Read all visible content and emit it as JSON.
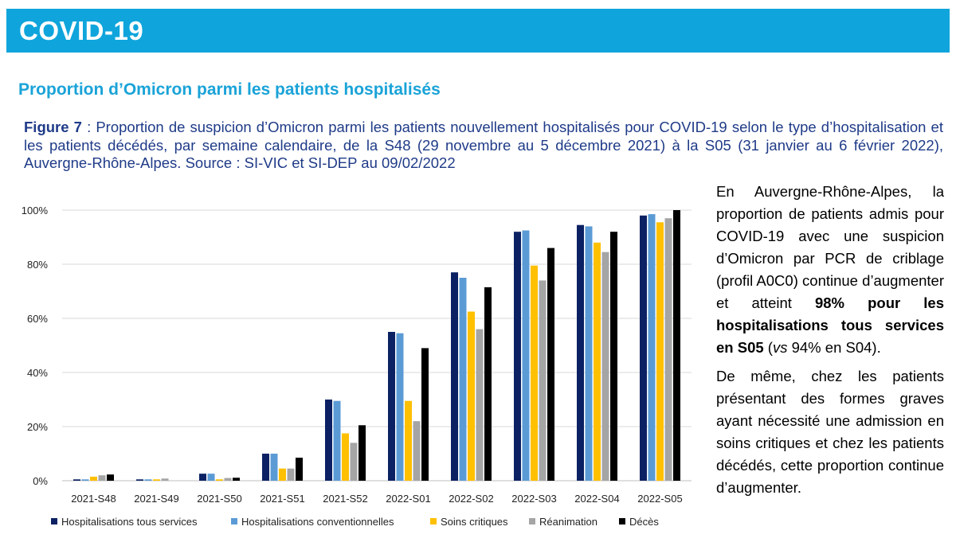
{
  "banner": {
    "title": "COVID-19"
  },
  "section_title": "Proportion d’Omicron parmi les patients hospitalisés",
  "caption": {
    "label": "Figure 7",
    "text": " : Proportion de suspicion d’Omicron parmi les patients nouvellement hospitalisés pour COVID-19 selon le type d’hospitalisation et les patients décédés, par semaine calendaire, de la S48 (29 novembre au 5 décembre 2021) à la S05 (31 janvier au 6 février 2022), Auvergne-Rhône-Alpes. Source : SI-VIC et SI-DEP au 09/02/2022"
  },
  "side_text": {
    "p1_a": "En Auvergne-Rhône-Alpes, la proportion de patients admis pour COVID-19 avec une suspicion d’Omicron par PCR de criblage (profil A0C0) continue d’augmenter et atteint ",
    "p1_bold": "98% pour les hospitalisations tous services en S05",
    "p1_b": " (",
    "p1_vs": "vs",
    "p1_c": " 94% en S04).",
    "p2": "De même, chez les patients présentant des formes graves ayant nécessité une admission en soins critiques et chez les patients décédés, cette proportion continue d’augmenter."
  },
  "chart_data": {
    "type": "bar",
    "title": "",
    "xlabel": "",
    "ylabel": "",
    "ylim": [
      0,
      100
    ],
    "yticks": [
      "0%",
      "20%",
      "40%",
      "60%",
      "80%",
      "100%"
    ],
    "ytick_values": [
      0,
      20,
      40,
      60,
      80,
      100
    ],
    "grid": true,
    "legend_position": "bottom",
    "categories": [
      "2021-S48",
      "2021-S49",
      "2021-S50",
      "2021-S51",
      "2021-S52",
      "2022-S01",
      "2022-S02",
      "2022-S03",
      "2022-S04",
      "2022-S05"
    ],
    "series": [
      {
        "name": "Hospitalisations tous services",
        "color": "#0b2163",
        "values": [
          0.5,
          0.5,
          2.6,
          10,
          30,
          55,
          77,
          92,
          94.5,
          98
        ]
      },
      {
        "name": "Hospitalisations conventionnelles",
        "color": "#5b9bd5",
        "values": [
          0.5,
          0.5,
          2.6,
          10,
          29.5,
          54.5,
          75,
          92.5,
          94,
          98.5
        ]
      },
      {
        "name": "Soins critiques",
        "color": "#ffc000",
        "values": [
          1.5,
          0.5,
          0.5,
          4.5,
          17.5,
          29.5,
          62.5,
          79.5,
          88,
          95.5
        ]
      },
      {
        "name": "Réanimation",
        "color": "#a5a5a5",
        "values": [
          2,
          0.8,
          1,
          4.5,
          14,
          22,
          56,
          74,
          84.5,
          97
        ]
      },
      {
        "name": "Décès",
        "color": "#000000",
        "values": [
          2.3,
          0,
          1.1,
          8.5,
          20.5,
          49,
          71.5,
          86,
          92,
          100
        ]
      }
    ]
  }
}
